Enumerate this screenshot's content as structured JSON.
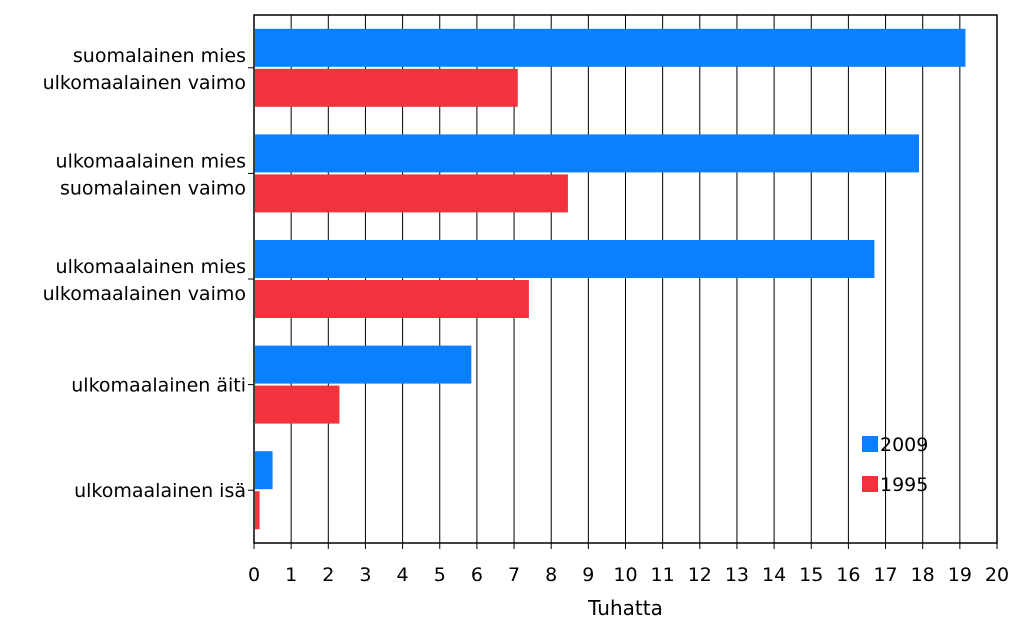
{
  "chart_data": {
    "type": "bar",
    "orientation": "horizontal",
    "categories": [
      [
        "suomalainen mies",
        "ulkomaalainen vaimo"
      ],
      [
        "ulkomaalainen mies",
        "suomalainen vaimo"
      ],
      [
        "ulkomaalainen mies",
        "ulkomaalainen vaimo"
      ],
      [
        "ulkomaalainen äiti"
      ],
      [
        "ulkomaalainen isä"
      ]
    ],
    "series": [
      {
        "name": "2009",
        "color": "#0A7FFF",
        "values": [
          19.15,
          17.9,
          16.7,
          5.85,
          0.5
        ]
      },
      {
        "name": "1995",
        "color": "#F2333D",
        "values": [
          7.1,
          8.45,
          7.4,
          2.3,
          0.15
        ]
      }
    ],
    "xlabel": "Tuhatta",
    "xlim": [
      0,
      20
    ],
    "xticks": [
      "0",
      "1",
      "2",
      "3",
      "4",
      "5",
      "6",
      "7",
      "8",
      "9",
      "10",
      "11",
      "12",
      "13",
      "14",
      "15",
      "16",
      "17",
      "18",
      "19",
      "20"
    ],
    "grid": "vertical",
    "legend": {
      "position": "bottom-right",
      "entries": [
        "2009",
        "1995"
      ]
    }
  }
}
